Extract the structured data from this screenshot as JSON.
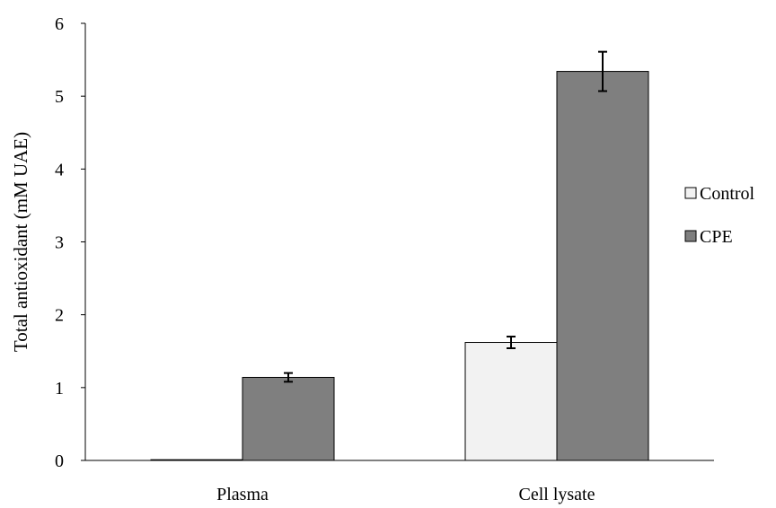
{
  "chart_data": {
    "type": "bar",
    "categories": [
      "Plasma",
      "Cell lysate"
    ],
    "series": [
      {
        "name": "Control",
        "values": [
          0.01,
          1.62
        ],
        "errors": [
          0.0,
          0.08
        ],
        "color": "#f2f2f2"
      },
      {
        "name": "CPE",
        "values": [
          1.14,
          5.34
        ],
        "errors": [
          0.06,
          0.27
        ],
        "color": "#7f7f7f"
      }
    ],
    "ylabel": "Total antioxidant (mM UAE)",
    "ylim": [
      0,
      6
    ],
    "yticks": [
      0,
      1,
      2,
      3,
      4,
      5,
      6
    ],
    "ytick_labels": [
      "0",
      "1",
      "2",
      "3",
      "4",
      "5",
      "6"
    ],
    "legend": "right",
    "grid": false
  }
}
